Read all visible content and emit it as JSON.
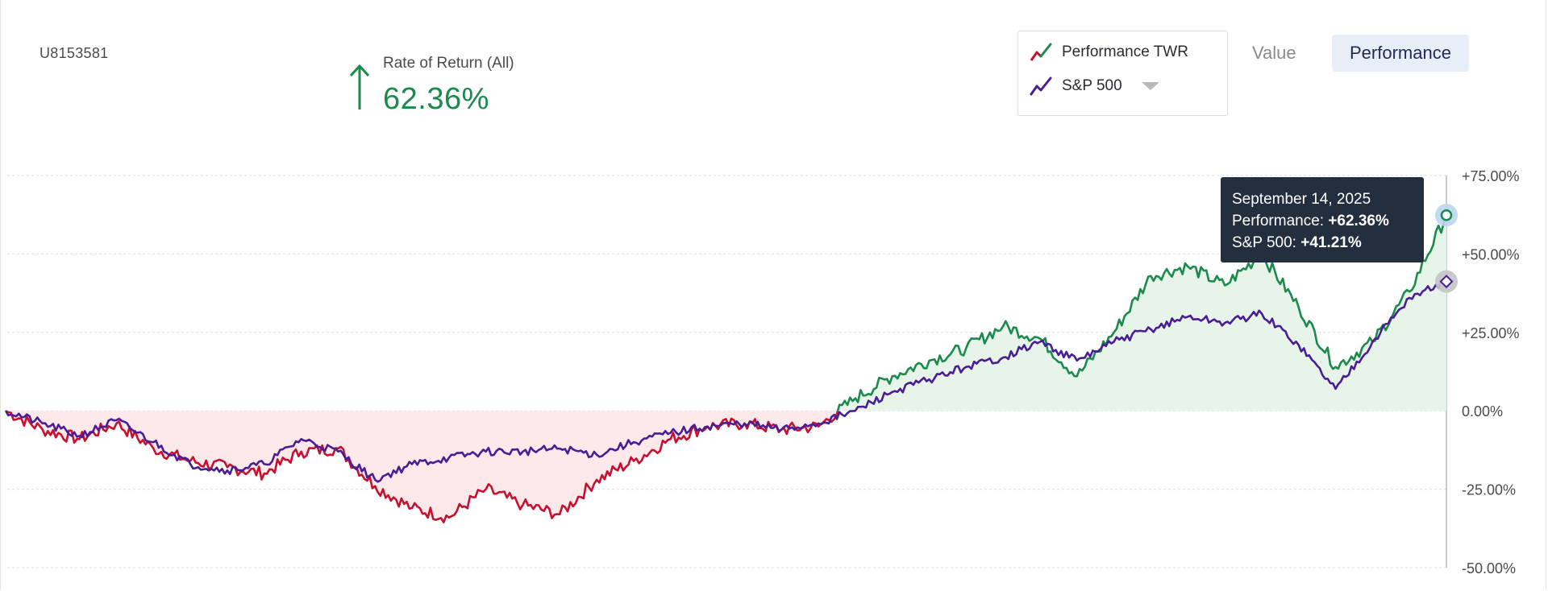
{
  "account": {
    "id": "U8153581"
  },
  "summary": {
    "label": "Rate of Return (All)",
    "value": "62.36%",
    "direction_icon": "arrow-up-icon",
    "color": "#1b8a4c"
  },
  "legend": {
    "items": [
      {
        "label": "Performance TWR",
        "icon": "trend-line-red-green-icon"
      },
      {
        "label": "S&P 500",
        "icon": "trend-line-purple-icon"
      }
    ]
  },
  "view_toggle": {
    "options": [
      "Value",
      "Performance"
    ],
    "selected": "Performance"
  },
  "tooltip": {
    "date": "September 14, 2025",
    "performance_label": "Performance: ",
    "performance_value": "+62.36%",
    "sp500_label": "S&P 500: ",
    "sp500_value": "+41.21%"
  },
  "colors": {
    "positive": "#1b8a4c",
    "negative": "#c8102e",
    "benchmark": "#4a1d96",
    "positive_fill": "#e7f4ea",
    "negative_fill": "#fde9ea",
    "tooltip_bg": "#232f3e"
  },
  "chart_data": {
    "type": "line",
    "ylim": [
      -50,
      75
    ],
    "yticks": [
      75,
      50,
      25,
      0,
      -25,
      -50
    ],
    "ytick_labels": [
      "+75.00%",
      "+50.00%",
      "+25.00%",
      "0.00%",
      "-25.00%",
      "-50.00%"
    ],
    "grid": true,
    "n_points": 40,
    "series": [
      {
        "name": "Performance TWR",
        "values": [
          0,
          -6,
          -9,
          -4,
          -12,
          -16,
          -18,
          -20,
          -13,
          -12,
          -24,
          -31,
          -34,
          -25,
          -30,
          -33,
          -22,
          -16,
          -9,
          -5,
          -4,
          -6,
          -5,
          4,
          11,
          16,
          20,
          27,
          23,
          11,
          25,
          43,
          46,
          40,
          50,
          33,
          14,
          22,
          38,
          62.36
        ]
      },
      {
        "name": "S&P 500",
        "values": [
          0,
          -4,
          -8,
          -3,
          -10,
          -17,
          -19,
          -17,
          -9,
          -13,
          -22,
          -17,
          -15,
          -13,
          -13,
          -12,
          -14,
          -10,
          -7,
          -5,
          -4,
          -6,
          -4,
          0,
          6,
          10,
          14,
          17,
          22,
          16,
          22,
          26,
          30,
          28,
          31,
          21,
          7,
          22,
          36,
          41.21
        ]
      }
    ]
  }
}
